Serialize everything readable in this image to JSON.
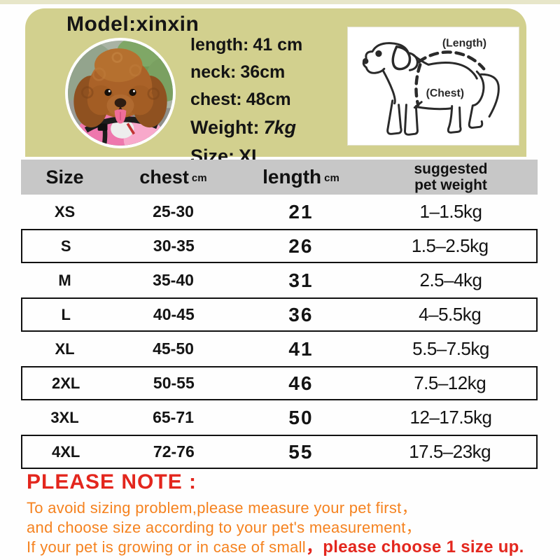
{
  "model_card": {
    "title": "Model:xinxin",
    "panel_color": "#d2d08e",
    "measurements": [
      {
        "label": "length:",
        "value": "41 cm"
      },
      {
        "label": "neck:",
        "value": "36cm"
      },
      {
        "label": "chest:",
        "value": "48cm"
      },
      {
        "label": "Weight:",
        "value": "7kg"
      },
      {
        "label": "Size:",
        "value": "XL"
      }
    ],
    "diagram": {
      "length_label": "(Length)",
      "chest_label": "(Chest)"
    },
    "photo": "poodle-dog-photo"
  },
  "size_table": {
    "header_bg": "#c7c7c7",
    "header": {
      "size": "Size",
      "chest": "chest",
      "chest_unit": "cm",
      "length": "length",
      "length_unit": "cm",
      "weight_line1": "suggested",
      "weight_line2": "pet weight"
    },
    "rows": [
      {
        "size": "XS",
        "chest": "25-30",
        "length": "21",
        "weight": "1–1.5kg",
        "boxed": false
      },
      {
        "size": "S",
        "chest": "30-35",
        "length": "26",
        "weight": "1.5–2.5kg",
        "boxed": true
      },
      {
        "size": "M",
        "chest": "35-40",
        "length": "31",
        "weight": "2.5–4kg",
        "boxed": false
      },
      {
        "size": "L",
        "chest": "40-45",
        "length": "36",
        "weight": "4–5.5kg",
        "boxed": true
      },
      {
        "size": "XL",
        "chest": "45-50",
        "length": "41",
        "weight": "5.5–7.5kg",
        "boxed": false
      },
      {
        "size": "2XL",
        "chest": "50-55",
        "length": "46",
        "weight": "7.5–12kg",
        "boxed": true
      },
      {
        "size": "3XL",
        "chest": "65-71",
        "length": "50",
        "weight": "12–17.5kg",
        "boxed": false
      },
      {
        "size": "4XL",
        "chest": "72-76",
        "length": "55",
        "weight": "17.5–23kg",
        "boxed": true
      }
    ]
  },
  "note": {
    "title": "PLEASE NOTE :",
    "line1": "To avoid sizing problem,please measure your pet first，",
    "line2": "and choose size according to your pet's measurement，",
    "line3_orange": "If your pet is growing or in case of small",
    "line3_red": "，please choose 1 size up.",
    "red": "#e3261d",
    "orange": "#f5821f"
  }
}
